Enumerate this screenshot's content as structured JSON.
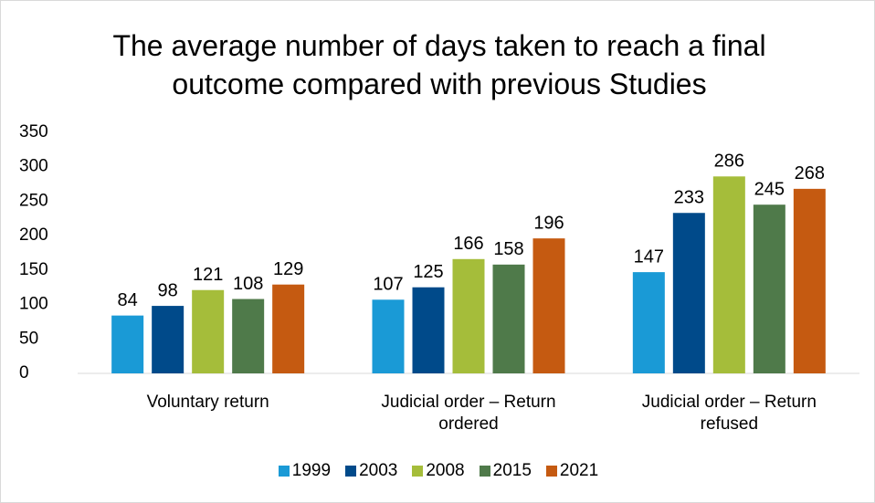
{
  "chart_data": {
    "type": "bar",
    "title": "The average number of days taken to reach a final outcome compared with previous Studies",
    "categories": [
      "Voluntary return",
      "Judicial order – Return ordered",
      "Judicial order – Return refused"
    ],
    "series": [
      {
        "name": "1999",
        "color": "#1a9ad6",
        "values": [
          84,
          107,
          147
        ]
      },
      {
        "name": "2003",
        "color": "#004a8a",
        "values": [
          98,
          125,
          233
        ]
      },
      {
        "name": "2008",
        "color": "#a5bd3a",
        "values": [
          121,
          166,
          286
        ]
      },
      {
        "name": "2015",
        "color": "#4f7a4a",
        "values": [
          108,
          158,
          245
        ]
      },
      {
        "name": "2021",
        "color": "#c55a11",
        "values": [
          129,
          196,
          268
        ]
      }
    ],
    "ylim": [
      0,
      350
    ],
    "yticks": [
      0,
      50,
      100,
      150,
      200,
      250,
      300,
      350
    ],
    "grid": false,
    "legend": "bottom"
  }
}
